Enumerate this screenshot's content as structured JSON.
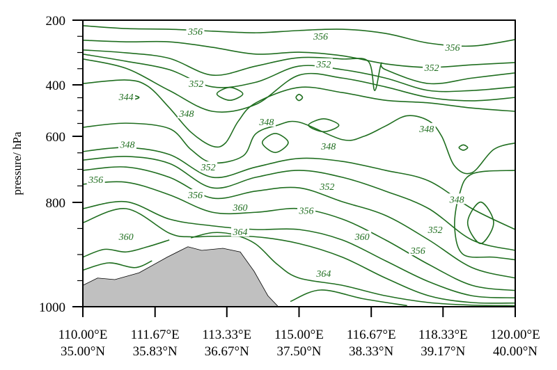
{
  "chart_data": {
    "type": "contour",
    "title": "",
    "xlabel": "",
    "ylabel": "pressure/ hPa",
    "ylim": [
      1000,
      200
    ],
    "xlim": [
      110.0,
      120.0
    ],
    "grid": false,
    "line_color": "#1f6e1f",
    "terrain_color": "#c0c0c0",
    "y_ticks": [
      200,
      400,
      600,
      800,
      1000
    ],
    "y_tick_labels": [
      "200",
      "400",
      "600",
      "800",
      "1000"
    ],
    "x_ticks": [
      110.0,
      111.67,
      113.33,
      115.0,
      116.67,
      118.33,
      120.0
    ],
    "x_tick_labels": [
      {
        "lon": "110.00°E",
        "lat": "35.00°N"
      },
      {
        "lon": "111.67°E",
        "lat": "35.83°N"
      },
      {
        "lon": "113.33°E",
        "lat": "36.67°N"
      },
      {
        "lon": "115.00°E",
        "lat": "37.50°N"
      },
      {
        "lon": "116.67°E",
        "lat": "38.33°N"
      },
      {
        "lon": "118.33°E",
        "lat": "39.17°N"
      },
      {
        "lon": "120.00°E",
        "lat": "40.00°N"
      }
    ],
    "terrain": [
      [
        110,
        959
      ],
      [
        110.34,
        945
      ],
      [
        110.74,
        948
      ],
      [
        111.3,
        935
      ],
      [
        111.95,
        905
      ],
      [
        112.43,
        885
      ],
      [
        112.75,
        892
      ],
      [
        113.24,
        888
      ],
      [
        113.64,
        895
      ],
      [
        113.96,
        932
      ],
      [
        114.28,
        979
      ],
      [
        114.52,
        1000
      ]
    ],
    "contours": [
      {
        "level": 356,
        "points": [
          [
            110,
            217
          ],
          [
            111,
            226
          ],
          [
            112,
            228
          ],
          [
            113,
            234
          ],
          [
            114,
            239
          ],
          [
            115,
            232
          ],
          [
            116,
            228
          ],
          [
            117,
            241
          ],
          [
            118,
            271
          ],
          [
            119,
            280
          ],
          [
            120,
            260
          ]
        ]
      },
      {
        "level": 352,
        "points": [
          [
            110,
            262
          ],
          [
            111,
            267
          ],
          [
            112,
            267
          ],
          [
            113,
            284
          ],
          [
            114,
            305
          ],
          [
            115,
            299
          ],
          [
            116,
            310
          ],
          [
            117,
            335
          ],
          [
            118,
            346
          ],
          [
            119,
            338
          ],
          [
            120,
            331
          ]
        ]
      },
      {
        "level": 352,
        "points": [
          [
            110,
            292
          ],
          [
            111,
            301
          ],
          [
            112,
            318
          ],
          [
            113,
            370
          ],
          [
            114,
            342
          ],
          [
            115,
            316
          ],
          [
            116,
            320
          ],
          [
            116.6,
            327
          ],
          [
            116.75,
            422
          ],
          [
            116.9,
            335
          ],
          [
            117,
            353
          ],
          [
            118,
            396
          ],
          [
            119,
            379
          ],
          [
            120,
            363
          ]
        ]
      },
      {
        "level": 348,
        "points": [
          [
            110,
            305
          ],
          [
            111,
            327
          ],
          [
            112,
            353
          ],
          [
            113,
            408
          ],
          [
            114,
            392
          ],
          [
            115,
            342
          ],
          [
            116,
            353
          ],
          [
            117,
            379
          ],
          [
            118,
            422
          ],
          [
            119,
            422
          ],
          [
            120,
            408
          ]
        ]
      },
      {
        "level": 348,
        "points": [
          [
            110,
            320
          ],
          [
            111,
            349
          ],
          [
            112,
            422
          ],
          [
            113,
            503
          ],
          [
            114,
            476
          ],
          [
            115,
            370
          ],
          [
            116,
            379
          ],
          [
            117,
            408
          ],
          [
            118,
            449
          ],
          [
            119,
            462
          ],
          [
            120,
            449
          ]
        ]
      },
      {
        "level": 348,
        "points": [
          [
            110,
            396
          ],
          [
            111,
            385
          ],
          [
            111.5,
            405
          ],
          [
            112,
            489
          ],
          [
            112.5,
            584
          ],
          [
            113,
            630
          ],
          [
            113.3,
            620
          ],
          [
            113.6,
            540
          ],
          [
            114,
            470
          ],
          [
            115,
            410
          ],
          [
            116,
            430
          ],
          [
            117,
            460
          ],
          [
            118,
            470
          ],
          [
            119,
            490
          ],
          [
            120,
            503
          ]
        ]
      },
      {
        "level": 348,
        "points": [
          [
            110,
            565
          ],
          [
            111,
            549
          ],
          [
            112,
            570
          ],
          [
            112.5,
            640
          ],
          [
            113,
            680
          ],
          [
            113.7,
            660
          ],
          [
            114,
            590
          ],
          [
            114.5,
            557
          ],
          [
            115,
            545
          ],
          [
            116,
            610
          ],
          [
            116.5,
            600
          ],
          [
            117,
            560
          ],
          [
            117.5,
            520
          ],
          [
            118,
            540
          ],
          [
            118.3,
            600
          ],
          [
            118.6,
            690
          ],
          [
            119,
            710
          ],
          [
            119.5,
            640
          ],
          [
            120,
            620
          ]
        ]
      },
      {
        "level": 352,
        "points": [
          [
            110,
            646
          ],
          [
            111,
            634
          ],
          [
            112,
            655
          ],
          [
            113,
            724
          ],
          [
            114,
            693
          ],
          [
            115,
            667
          ],
          [
            116,
            676
          ],
          [
            117,
            703
          ],
          [
            118,
            735
          ],
          [
            119,
            812
          ],
          [
            120,
            852
          ]
        ]
      },
      {
        "level": 352,
        "points": [
          [
            110,
            672
          ],
          [
            111,
            661
          ],
          [
            112,
            682
          ],
          [
            113,
            756
          ],
          [
            114,
            724
          ],
          [
            115,
            703
          ],
          [
            116,
            724
          ],
          [
            117,
            766
          ],
          [
            118,
            812
          ],
          [
            119,
            872
          ],
          [
            120,
            892
          ]
        ]
      },
      {
        "level": 356,
        "points": [
          [
            110,
            703
          ],
          [
            111,
            693
          ],
          [
            112,
            724
          ],
          [
            113,
            787
          ],
          [
            114,
            766
          ],
          [
            115,
            756
          ],
          [
            116,
            798
          ],
          [
            117,
            825
          ],
          [
            118,
            872
          ],
          [
            119,
            925
          ],
          [
            120,
            945
          ]
        ]
      },
      {
        "level": 356,
        "points": [
          [
            110,
            745
          ],
          [
            111,
            739
          ],
          [
            112,
            777
          ],
          [
            113,
            819
          ],
          [
            114,
            819
          ],
          [
            115,
            812
          ],
          [
            116,
            832
          ],
          [
            117,
            872
          ],
          [
            118,
            919
          ],
          [
            119,
            959
          ],
          [
            120,
            969
          ]
        ]
      },
      {
        "level": 360,
        "points": [
          [
            110,
            812
          ],
          [
            111,
            798
          ],
          [
            112,
            832
          ],
          [
            113,
            845
          ],
          [
            114,
            852
          ],
          [
            115,
            852
          ],
          [
            116,
            872
          ],
          [
            117,
            912
          ],
          [
            118,
            952
          ],
          [
            119,
            979
          ],
          [
            120,
            983
          ]
        ]
      },
      {
        "level": 360,
        "points": [
          [
            110,
            839
          ],
          [
            111,
            812
          ],
          [
            112,
            859
          ],
          [
            112.5,
            866
          ],
          [
            113,
            865
          ],
          [
            114,
            866
          ],
          [
            115,
            879
          ],
          [
            116,
            905
          ],
          [
            117,
            945
          ],
          [
            118,
            979
          ],
          [
            119,
            992
          ],
          [
            120,
            993
          ]
        ]
      },
      {
        "level": 364,
        "points": [
          [
            112.5,
            868
          ],
          [
            113,
            858
          ],
          [
            113.5,
            862
          ],
          [
            114,
            880
          ],
          [
            114.5,
            919
          ],
          [
            115,
            945
          ],
          [
            116,
            959
          ],
          [
            117,
            979
          ],
          [
            118,
            992
          ],
          [
            119,
            997
          ],
          [
            120,
            998
          ]
        ]
      },
      {
        "level": 364,
        "points": [
          [
            110,
            905
          ],
          [
            110.5,
            890
          ],
          [
            111,
            895
          ],
          [
            111.5,
            885
          ],
          [
            112,
            872
          ]
        ]
      },
      {
        "level": 364,
        "points": [
          [
            110,
            930
          ],
          [
            110.6,
            916
          ],
          [
            111.2,
            925
          ],
          [
            111.6,
            912
          ]
        ]
      },
      {
        "level": 364,
        "points": [
          [
            114.8,
            990
          ],
          [
            115.5,
            968
          ],
          [
            116.5,
            985
          ],
          [
            117.5,
            998
          ]
        ]
      },
      {
        "level": 348,
        "points": [
          [
            120,
            703
          ],
          [
            119,
            714
          ],
          [
            118.7,
            780
          ],
          [
            118.6,
            850
          ],
          [
            118.8,
            900
          ],
          [
            119.5,
            905
          ],
          [
            120,
            910
          ]
        ]
      },
      {
        "level": 344,
        "closed": true,
        "points": [
          [
            111.0,
            449
          ],
          [
            111.15,
            441
          ],
          [
            111.3,
            449
          ],
          [
            111.15,
            457
          ]
        ]
      },
      {
        "level": 348,
        "closed": true,
        "points": [
          [
            113.1,
            435
          ],
          [
            113.4,
            410
          ],
          [
            113.7,
            435
          ],
          [
            113.4,
            460
          ]
        ]
      },
      {
        "level": 348,
        "closed": true,
        "points": [
          [
            115.22,
            557
          ],
          [
            115.57,
            532
          ],
          [
            115.92,
            557
          ],
          [
            115.57,
            582
          ]
        ]
      },
      {
        "level": 348,
        "closed": true,
        "points": [
          [
            114.15,
            619
          ],
          [
            114.45,
            589
          ],
          [
            114.75,
            619
          ],
          [
            114.45,
            649
          ]
        ]
      },
      {
        "level": 348,
        "closed": true,
        "points": [
          [
            118.9,
            839
          ],
          [
            119.2,
            799
          ],
          [
            119.5,
            839
          ],
          [
            119.2,
            879
          ]
        ]
      },
      {
        "level": 348,
        "closed": true,
        "points": [
          [
            118.7,
            634
          ],
          [
            118.8,
            626
          ],
          [
            118.9,
            634
          ],
          [
            118.8,
            642
          ]
        ]
      },
      {
        "level": 348,
        "closed": true,
        "points": [
          [
            114.93,
            449
          ],
          [
            115.0,
            437
          ],
          [
            115.08,
            449
          ],
          [
            115.0,
            461
          ]
        ]
      }
    ],
    "contour_labels": [
      {
        "text": "356",
        "at": [
          112.6,
          234
        ]
      },
      {
        "text": "356",
        "at": [
          115.5,
          249
        ]
      },
      {
        "text": "356",
        "at": [
          118.55,
          284
        ]
      },
      {
        "text": "352",
        "at": [
          115.57,
          335
        ]
      },
      {
        "text": "352",
        "at": [
          118.07,
          346
        ]
      },
      {
        "text": "352",
        "at": [
          112.62,
          396
        ]
      },
      {
        "text": "344",
        "at": [
          111.0,
          446
        ]
      },
      {
        "text": "348",
        "at": [
          112.4,
          511
        ]
      },
      {
        "text": "348",
        "at": [
          111.03,
          624
        ]
      },
      {
        "text": "348",
        "at": [
          114.25,
          543
        ]
      },
      {
        "text": "348",
        "at": [
          115.68,
          629
        ]
      },
      {
        "text": "348",
        "at": [
          117.95,
          570
        ]
      },
      {
        "text": "352",
        "at": [
          112.9,
          693
        ]
      },
      {
        "text": "352",
        "at": [
          115.65,
          752
        ]
      },
      {
        "text": "356",
        "at": [
          110.3,
          731
        ]
      },
      {
        "text": "356",
        "at": [
          112.6,
          777
        ]
      },
      {
        "text": "356",
        "at": [
          115.17,
          815
        ]
      },
      {
        "text": "360",
        "at": [
          113.64,
          809
        ]
      },
      {
        "text": "360",
        "at": [
          111.0,
          865
        ]
      },
      {
        "text": "360",
        "at": [
          116.46,
          865
        ]
      },
      {
        "text": "364",
        "at": [
          113.64,
          856
        ]
      },
      {
        "text": "364",
        "at": [
          115.57,
          936
        ]
      },
      {
        "text": "348",
        "at": [
          118.65,
          790
        ]
      },
      {
        "text": "352",
        "at": [
          118.15,
          852
        ]
      },
      {
        "text": "356",
        "at": [
          117.75,
          892
        ]
      }
    ]
  }
}
